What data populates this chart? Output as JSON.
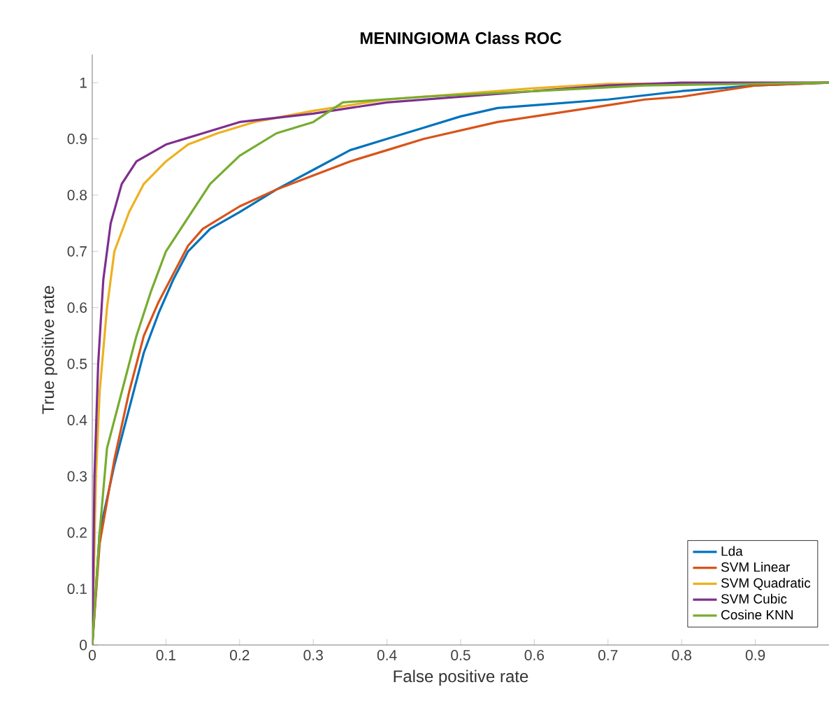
{
  "chart_data": {
    "type": "line",
    "title": "MENINGIOMA Class ROC",
    "xlabel": "False positive rate",
    "ylabel": "True positive rate",
    "xlim": [
      0,
      1
    ],
    "ylim": [
      0,
      1.05
    ],
    "xticks": [
      0,
      0.1,
      0.2,
      0.3,
      0.4,
      0.5,
      0.6,
      0.7,
      0.8,
      0.9
    ],
    "yticks": [
      0,
      0.1,
      0.2,
      0.3,
      0.4,
      0.5,
      0.6,
      0.7,
      0.8,
      0.9,
      1
    ],
    "legend": "bottom right",
    "grid": false,
    "line_style": "solid",
    "series": [
      {
        "name": "Lda",
        "color": "#0072bd",
        "x": [
          0,
          0.01,
          0.03,
          0.05,
          0.07,
          0.09,
          0.11,
          0.13,
          0.16,
          0.2,
          0.25,
          0.3,
          0.35,
          0.4,
          0.45,
          0.5,
          0.55,
          0.6,
          0.7,
          0.8,
          0.9,
          1
        ],
        "values": [
          0,
          0.2,
          0.32,
          0.42,
          0.52,
          0.59,
          0.65,
          0.7,
          0.74,
          0.77,
          0.81,
          0.845,
          0.88,
          0.9,
          0.92,
          0.94,
          0.955,
          0.96,
          0.97,
          0.985,
          0.995,
          1
        ]
      },
      {
        "name": "SVM Linear",
        "color": "#d95319",
        "x": [
          0,
          0.01,
          0.03,
          0.05,
          0.07,
          0.09,
          0.11,
          0.13,
          0.15,
          0.2,
          0.25,
          0.3,
          0.35,
          0.4,
          0.45,
          0.5,
          0.55,
          0.6,
          0.65,
          0.7,
          0.75,
          0.8,
          0.85,
          0.9,
          1
        ],
        "values": [
          0,
          0.18,
          0.33,
          0.45,
          0.55,
          0.61,
          0.66,
          0.71,
          0.74,
          0.78,
          0.81,
          0.835,
          0.86,
          0.88,
          0.9,
          0.915,
          0.93,
          0.94,
          0.95,
          0.96,
          0.97,
          0.975,
          0.985,
          0.995,
          1
        ]
      },
      {
        "name": "SVM Quadratic",
        "color": "#edb120",
        "x": [
          0,
          0.005,
          0.01,
          0.02,
          0.03,
          0.05,
          0.07,
          0.1,
          0.13,
          0.17,
          0.22,
          0.3,
          0.4,
          0.5,
          0.6,
          0.7,
          1
        ],
        "values": [
          0,
          0.3,
          0.45,
          0.6,
          0.7,
          0.77,
          0.82,
          0.86,
          0.89,
          0.91,
          0.93,
          0.95,
          0.97,
          0.98,
          0.99,
          0.998,
          1
        ]
      },
      {
        "name": "SVM Cubic",
        "color": "#7e2f8e",
        "x": [
          0,
          0.003,
          0.008,
          0.015,
          0.025,
          0.04,
          0.06,
          0.1,
          0.15,
          0.2,
          0.3,
          0.4,
          0.5,
          0.6,
          0.7,
          0.8,
          1
        ],
        "values": [
          0,
          0.3,
          0.5,
          0.65,
          0.75,
          0.82,
          0.86,
          0.89,
          0.91,
          0.93,
          0.945,
          0.965,
          0.975,
          0.985,
          0.995,
          1,
          1
        ]
      },
      {
        "name": "Cosine KNN",
        "color": "#77ac30",
        "x": [
          0,
          0.01,
          0.02,
          0.04,
          0.06,
          0.08,
          0.1,
          0.13,
          0.16,
          0.2,
          0.25,
          0.3,
          0.34,
          0.45,
          0.6,
          0.75,
          1
        ],
        "values": [
          0,
          0.2,
          0.35,
          0.45,
          0.55,
          0.63,
          0.7,
          0.76,
          0.82,
          0.87,
          0.91,
          0.93,
          0.965,
          0.975,
          0.985,
          0.995,
          1
        ]
      }
    ]
  }
}
